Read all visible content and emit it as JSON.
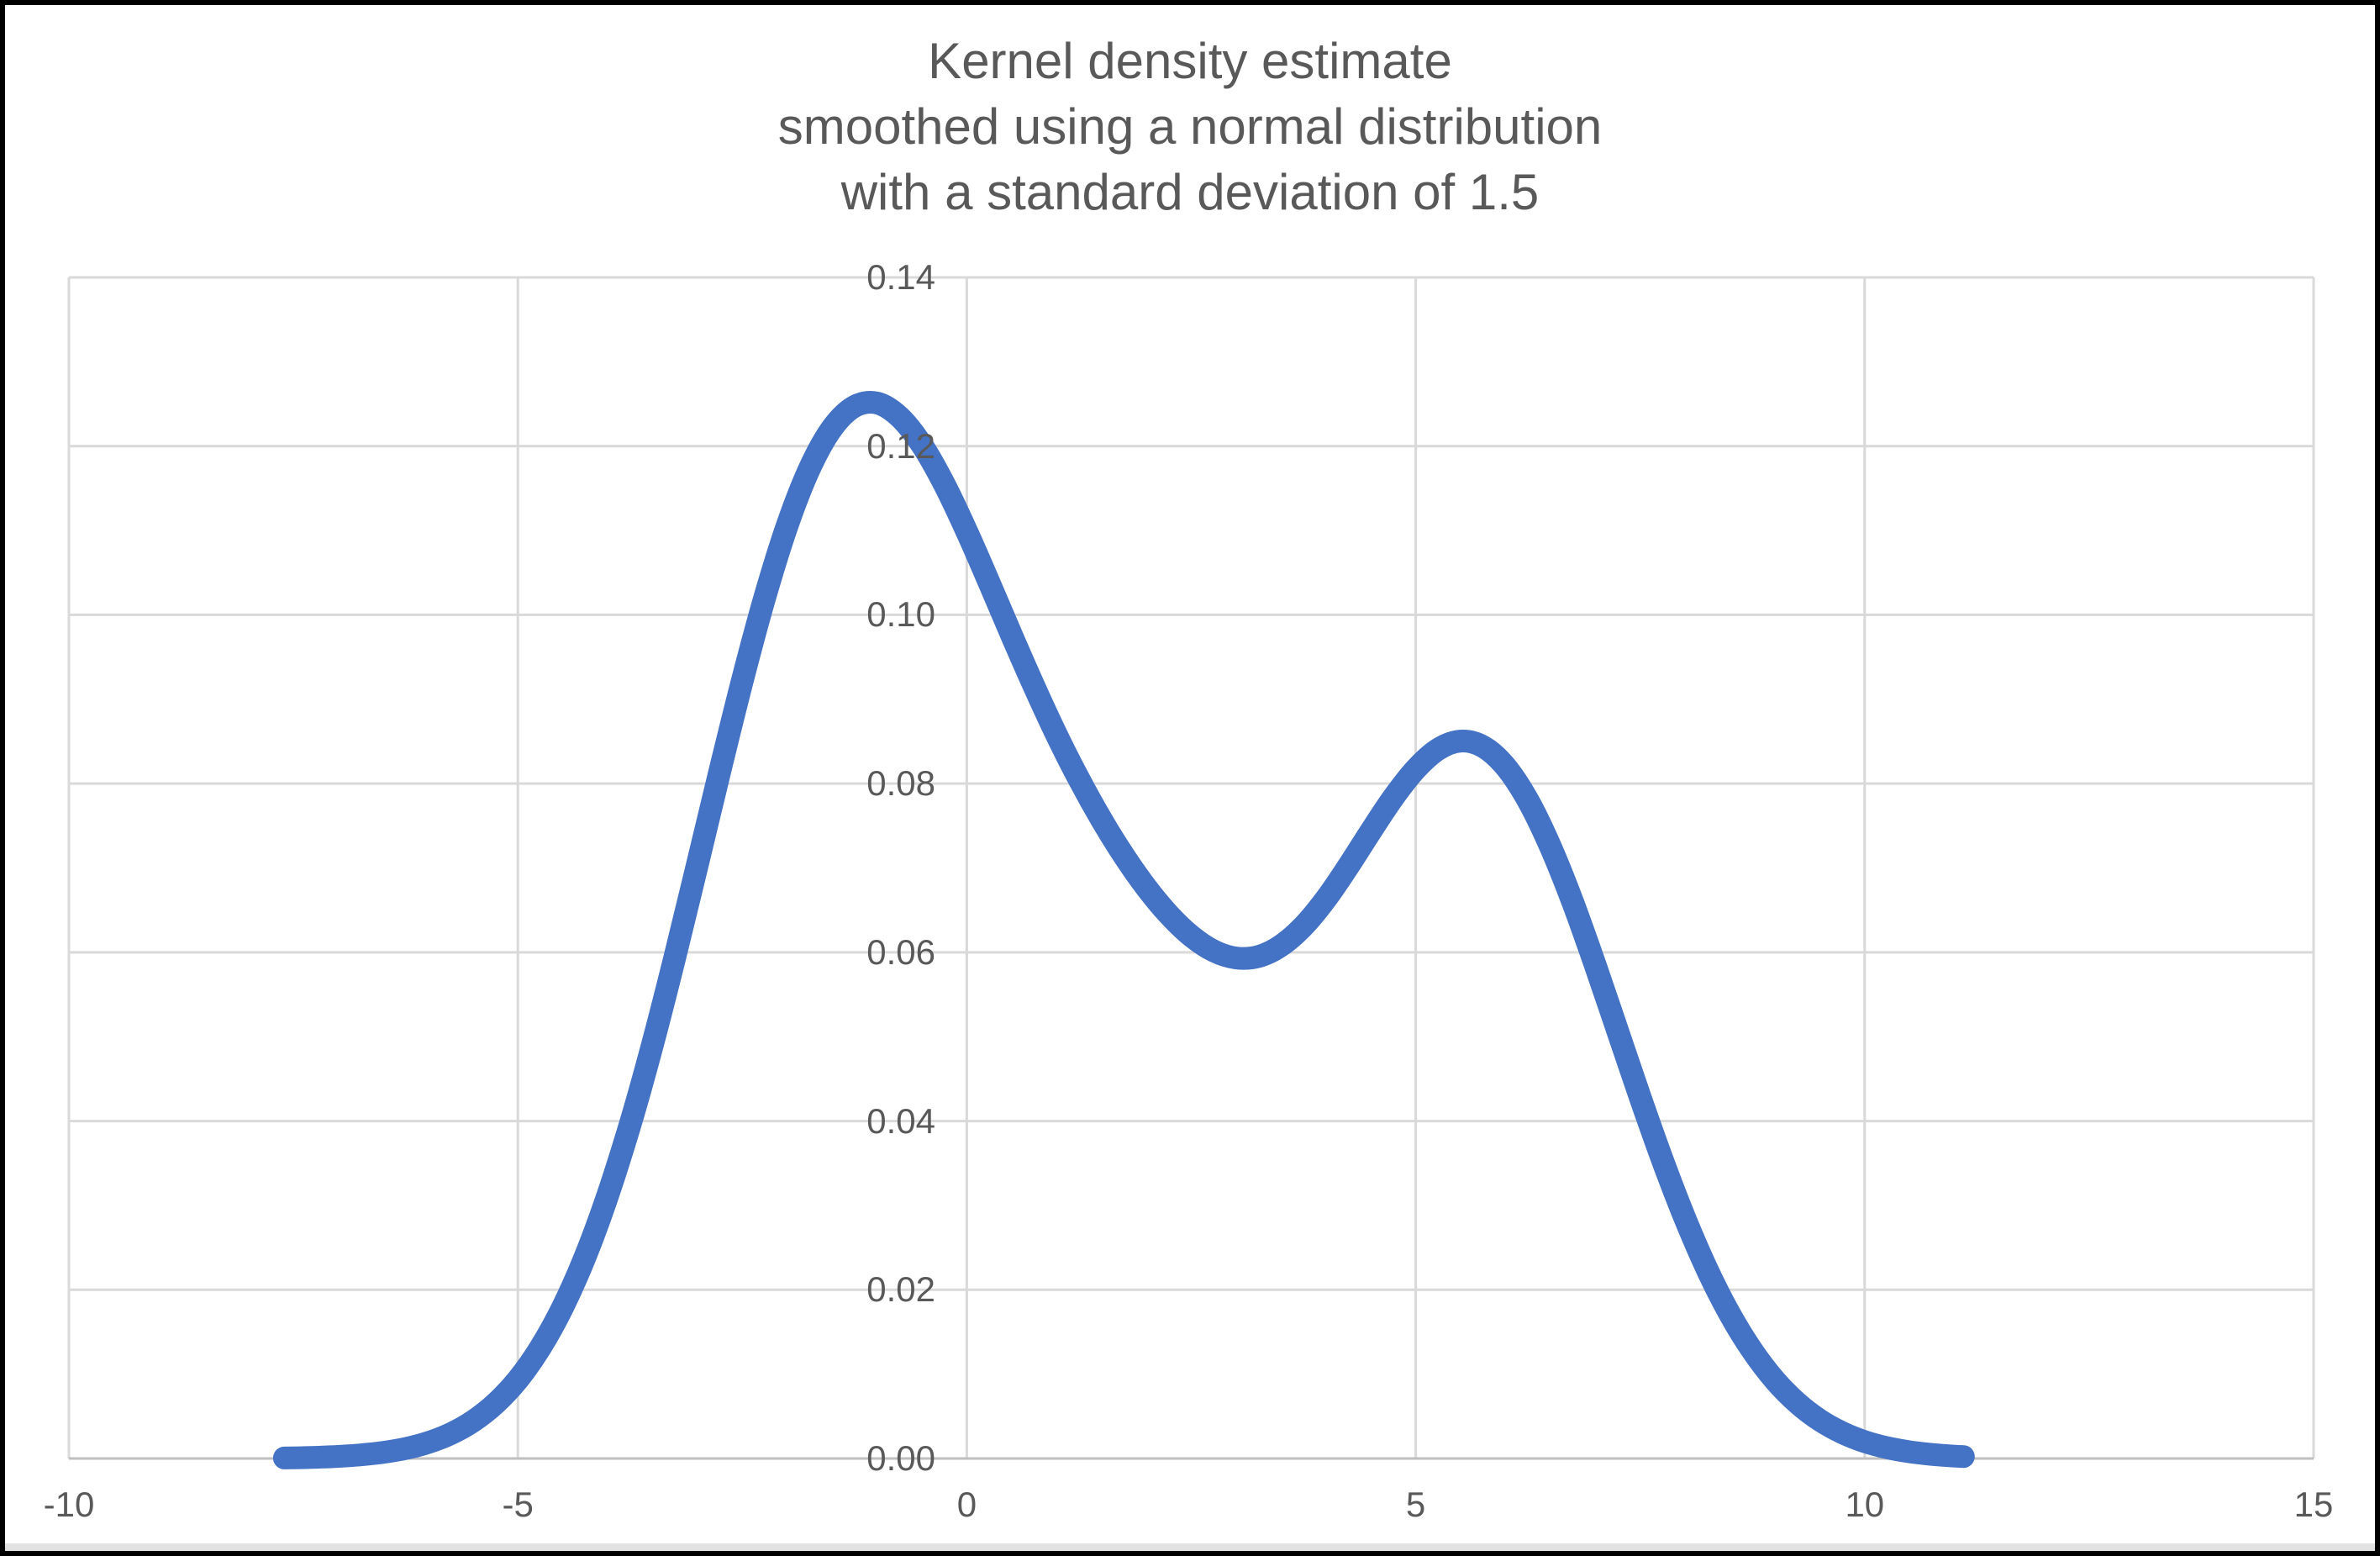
{
  "chart_data": {
    "type": "line",
    "title": "Kernel density estimate\nsmoothed using a normal distribution\nwith a standard deviation of 1.5",
    "xlabel": "",
    "ylabel": "",
    "xlim": [
      -10,
      15
    ],
    "ylim": [
      0,
      0.14
    ],
    "grid": true,
    "legend": "none",
    "x_ticks": [
      {
        "value": -10,
        "label": "-10"
      },
      {
        "value": -5,
        "label": "-5"
      },
      {
        "value": 0,
        "label": "0"
      },
      {
        "value": 5,
        "label": "5"
      },
      {
        "value": 10,
        "label": "10"
      },
      {
        "value": 15,
        "label": "15"
      }
    ],
    "y_ticks": [
      {
        "value": 0,
        "label": "0.00"
      },
      {
        "value": 0.02,
        "label": "0.02"
      },
      {
        "value": 0.04,
        "label": "0.04"
      },
      {
        "value": 0.06,
        "label": "0.06"
      },
      {
        "value": 0.08,
        "label": "0.08"
      },
      {
        "value": 0.1,
        "label": "0.10"
      },
      {
        "value": 0.12,
        "label": "0.12"
      },
      {
        "value": 0.14,
        "label": "0.14"
      }
    ],
    "colors": {
      "series": "#4472C4",
      "gridline": "#D9D9D9",
      "axis_line": "#BFBFBF",
      "tick_label": "#595959",
      "title": "#595959",
      "background": "#FFFFFF",
      "frame": "#000000"
    },
    "series": [
      {
        "name": "kernel-density-estimate",
        "points": [
          [
            -7.6,
            6e-05
          ],
          [
            -7.5,
            8e-05
          ],
          [
            -7.25,
            0.00014
          ],
          [
            -7.0,
            0.00025
          ],
          [
            -6.75,
            0.00043
          ],
          [
            -6.5,
            0.00072
          ],
          [
            -6.25,
            0.00118
          ],
          [
            -6.0,
            0.00188
          ],
          [
            -5.75,
            0.00292
          ],
          [
            -5.5,
            0.00441
          ],
          [
            -5.25,
            0.00651
          ],
          [
            -5.0,
            0.00935
          ],
          [
            -4.75,
            0.01312
          ],
          [
            -4.5,
            0.01794
          ],
          [
            -4.25,
            0.02392
          ],
          [
            -4.0,
            0.03115
          ],
          [
            -3.75,
            0.03958
          ],
          [
            -3.5,
            0.04909
          ],
          [
            -3.25,
            0.0595
          ],
          [
            -3.0,
            0.07043
          ],
          [
            -2.75,
            0.08149
          ],
          [
            -2.5,
            0.0922
          ],
          [
            -2.25,
            0.10206
          ],
          [
            -2.0,
            0.11059
          ],
          [
            -1.75,
            0.11737
          ],
          [
            -1.5,
            0.12213
          ],
          [
            -1.25,
            0.1247
          ],
          [
            -1.0,
            0.12511
          ],
          [
            -0.75,
            0.12347
          ],
          [
            -0.5,
            0.12014
          ],
          [
            -0.25,
            0.11547
          ],
          [
            0.0,
            0.10988
          ],
          [
            0.25,
            0.1038
          ],
          [
            0.5,
            0.09757
          ],
          [
            0.75,
            0.09152
          ],
          [
            1.0,
            0.08578
          ],
          [
            1.25,
            0.08051
          ],
          [
            1.5,
            0.07572
          ],
          [
            1.75,
            0.07144
          ],
          [
            2.0,
            0.06767
          ],
          [
            2.25,
            0.06447
          ],
          [
            2.5,
            0.06193
          ],
          [
            2.75,
            0.06017
          ],
          [
            3.0,
            0.05933
          ],
          [
            3.25,
            0.05951
          ],
          [
            3.5,
            0.06079
          ],
          [
            3.75,
            0.06311
          ],
          [
            4.0,
            0.06633
          ],
          [
            4.25,
            0.07021
          ],
          [
            4.5,
            0.07435
          ],
          [
            4.75,
            0.07834
          ],
          [
            5.0,
            0.08171
          ],
          [
            5.25,
            0.08407
          ],
          [
            5.5,
            0.08504
          ],
          [
            5.75,
            0.08439
          ],
          [
            6.0,
            0.08203
          ],
          [
            6.25,
            0.078
          ],
          [
            6.5,
            0.07252
          ],
          [
            6.75,
            0.0659
          ],
          [
            7.0,
            0.05846
          ],
          [
            7.25,
            0.05064
          ],
          [
            7.5,
            0.04281
          ],
          [
            7.75,
            0.03532
          ],
          [
            8.0,
            0.02843
          ],
          [
            8.25,
            0.02231
          ],
          [
            8.5,
            0.01708
          ],
          [
            8.75,
            0.01275
          ],
          [
            9.0,
            0.00927
          ],
          [
            9.25,
            0.00658
          ],
          [
            9.5,
            0.00454
          ],
          [
            9.75,
            0.00306
          ],
          [
            10.0,
            0.002
          ],
          [
            10.25,
            0.00128
          ],
          [
            10.5,
            0.00079
          ],
          [
            10.75,
            0.00048
          ],
          [
            11.0,
            0.00028
          ],
          [
            11.1,
            0.00023
          ]
        ]
      }
    ]
  }
}
